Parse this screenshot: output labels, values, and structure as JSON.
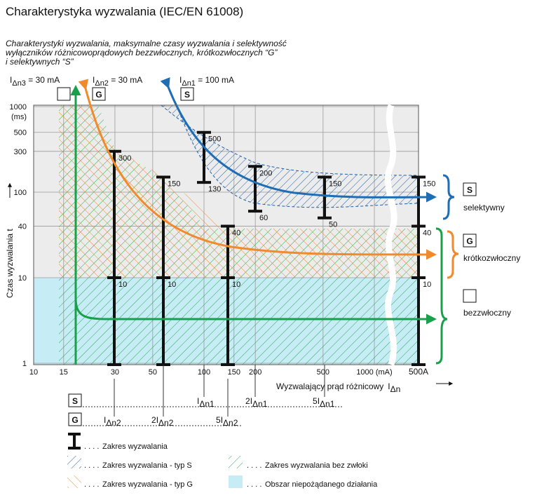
{
  "title": "Charakterystyka wyzwalania (IEC/EN 61008)",
  "subtitle_lines": [
    "Charakterystyki wyzwalania, maksymalne czasy wyzwalania i selektywność",
    "wyłączników różnicowoprądowych bezzwłocznych, krótkozwłocznych “G”",
    "i selektywnych “S”"
  ],
  "currents": [
    {
      "symbol": "I",
      "sub": "Δn3",
      "value": " = 30 mA"
    },
    {
      "symbol": "I",
      "sub": "Δn2",
      "value": " = 30 mA"
    },
    {
      "symbol": "I",
      "sub": "Δn1",
      "value": " = 100 mA"
    }
  ],
  "type_boxes": [
    "G",
    "S"
  ],
  "y_axis": {
    "label": "Czas wyzwalania  t",
    "unit": "(ms)",
    "ticks": [
      1,
      10,
      40,
      100,
      300,
      500,
      1000
    ]
  },
  "x_axis": {
    "label": "Wyzwalający prąd różnicowy",
    "symbol": "I",
    "sub": "Δn",
    "ticks": [
      10,
      15,
      30,
      50,
      100,
      150,
      200,
      500,
      {
        "value": 1000,
        "label": "1000 (mA)"
      }
    ],
    "end_label": "500A"
  },
  "bars": [
    [
      300,
      10
    ],
    [
      150,
      10
    ],
    [
      40,
      10
    ],
    [
      500,
      130
    ],
    [
      200,
      60
    ],
    [
      150,
      50
    ],
    [
      150,
      40,
      10
    ]
  ],
  "right_legend": [
    "selektywny",
    "krótkozwłoczny",
    "bezzwłoczny"
  ],
  "scheme": {
    "S": [
      {
        "symbol": "I",
        "sub": "Δn1"
      },
      {
        "prefix": "2",
        "symbol": "I",
        "sub": "Δn1"
      },
      {
        "prefix": "5",
        "symbol": "I",
        "sub": "Δn1"
      }
    ],
    "G": [
      {
        "symbol": "I",
        "sub": "Δn2"
      },
      {
        "prefix": "2",
        "symbol": "I",
        "sub": "Δn2"
      },
      {
        "prefix": "5",
        "symbol": "I",
        "sub": "Δn2"
      }
    ]
  },
  "legend": {
    "dots": ". . . .",
    "items": [
      "Zakres wyzwalania",
      "Zakres wyzwalania - typ S",
      "Zakres wyzwalania bez zwłoki",
      "Zakres wyzwalania - typ G",
      "Obszar niepożądanego działania"
    ]
  }
}
